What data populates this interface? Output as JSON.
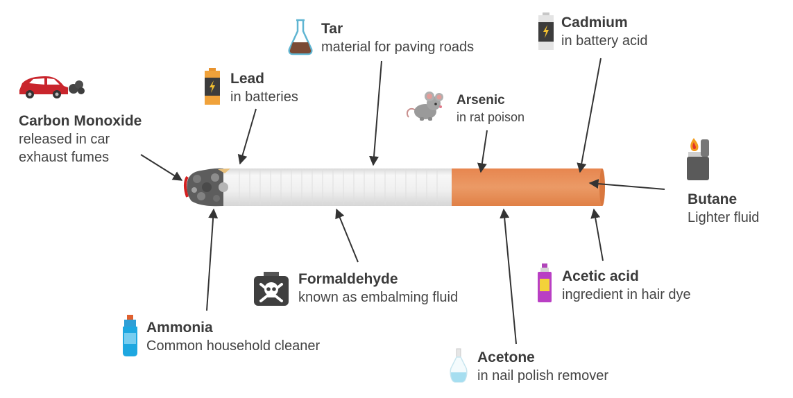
{
  "colors": {
    "text": "#3b3b3b",
    "arrow": "#333333",
    "filter": "#e8935f",
    "paper": "#f0f0f0",
    "ash": "#6a6a6a",
    "ember": "#d42020"
  },
  "substances": [
    {
      "key": "carbon_monoxide",
      "name": "Carbon Monoxide",
      "desc": "released in car\nexhaust fumes",
      "icon": "car-exhaust-icon"
    },
    {
      "key": "lead",
      "name": "Lead",
      "desc": "in batteries",
      "icon": "orange-battery-icon"
    },
    {
      "key": "tar",
      "name": "Tar",
      "desc": "material for paving roads",
      "icon": "flask-icon"
    },
    {
      "key": "arsenic",
      "name": "Arsenic",
      "desc": "in rat poison",
      "icon": "rat-icon"
    },
    {
      "key": "cadmium",
      "name": "Cadmium",
      "desc": "in battery acid",
      "icon": "gray-battery-icon"
    },
    {
      "key": "butane",
      "name": "Butane",
      "desc": "Lighter fluid",
      "icon": "lighter-icon"
    },
    {
      "key": "acetic_acid",
      "name": "Acetic acid",
      "desc": "ingredient in hair dye",
      "icon": "spray-bottle-icon"
    },
    {
      "key": "acetone",
      "name": "Acetone",
      "desc": "in nail polish remover",
      "icon": "nail-polish-bottle-icon"
    },
    {
      "key": "formaldehyde",
      "name": "Formaldehyde",
      "desc": "known as embalming fluid",
      "icon": "skull-crossbones-icon"
    },
    {
      "key": "ammonia",
      "name": "Ammonia",
      "desc": "Common household cleaner",
      "icon": "cleaner-bottle-icon"
    }
  ]
}
